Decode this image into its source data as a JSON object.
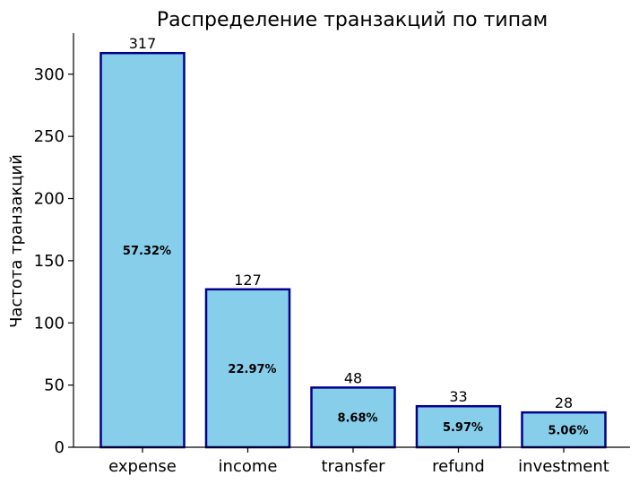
{
  "chart_data": {
    "type": "bar",
    "title": "Распределение транзакций по типам",
    "xlabel": "",
    "ylabel": "Частота транзакций",
    "categories": [
      "expense",
      "income",
      "transfer",
      "refund",
      "investment"
    ],
    "values": [
      317,
      127,
      48,
      33,
      28
    ],
    "value_labels": [
      "317",
      "127",
      "48",
      "33",
      "28"
    ],
    "percent_labels": [
      "57.32%",
      "22.97%",
      "8.68%",
      "5.97%",
      "5.06%"
    ],
    "ylim": [
      0,
      333
    ],
    "yticks": [
      0,
      50,
      100,
      150,
      200,
      250,
      300
    ],
    "ytick_labels": [
      "0",
      "50",
      "100",
      "150",
      "200",
      "250",
      "300"
    ],
    "grid": false,
    "colors": {
      "bar_fill": "#87CEEB",
      "bar_edge": "#00008B"
    }
  }
}
